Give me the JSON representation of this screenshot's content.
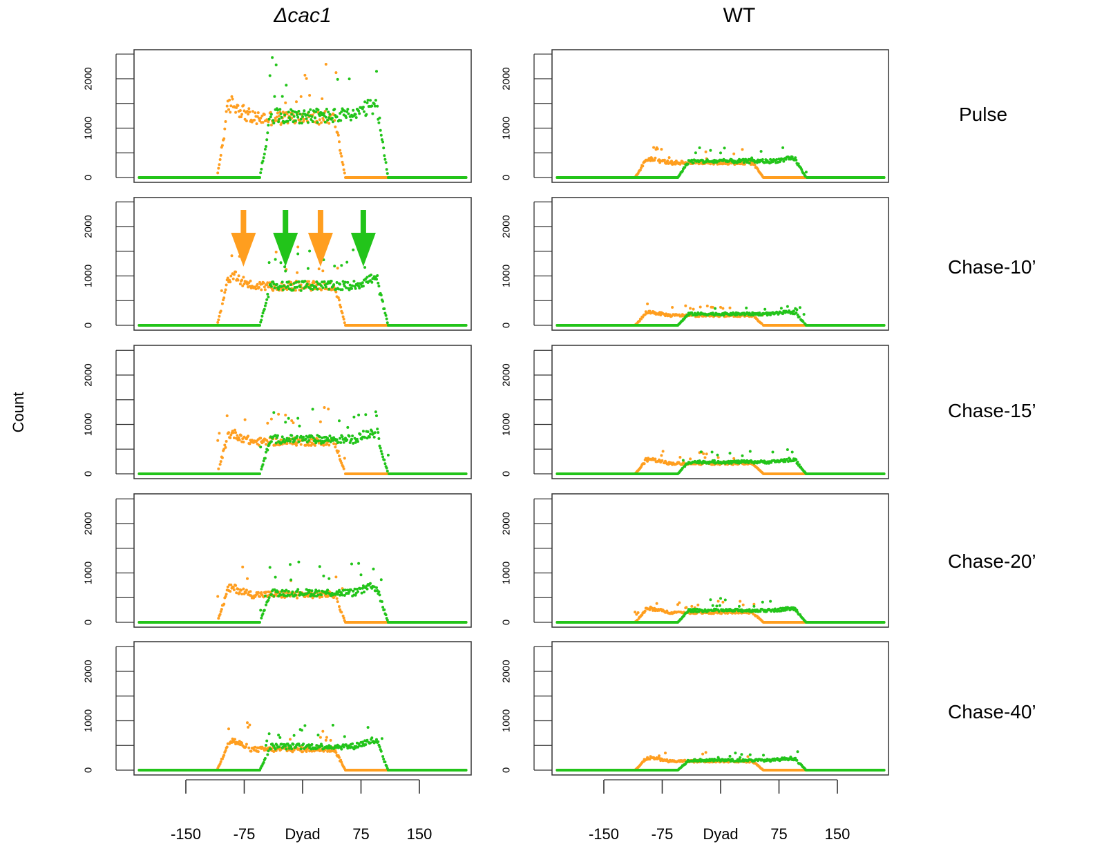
{
  "colors": {
    "orange": "#FF9E1F",
    "green": "#22C41A"
  },
  "chart_data": {
    "type": "scatter",
    "ylabel": "Count",
    "xlabel": "Dyad",
    "columns": [
      "Δcac1",
      "WT"
    ],
    "rows": [
      "Pulse",
      "Chase-10’",
      "Chase-15’",
      "Chase-20’",
      "Chase-40’"
    ],
    "xlim": [
      -225,
      225
    ],
    "ylim": [
      0,
      2500
    ],
    "yticks": [
      0,
      500,
      1000,
      1500,
      2000,
      2500
    ],
    "ytick_labels": [
      "0",
      "",
      "1000",
      "",
      "2000",
      ""
    ],
    "xticks": [
      -150,
      -75,
      0,
      75,
      150
    ],
    "xtick_labels": [
      "-150",
      "-75",
      "Dyad",
      "75",
      "150"
    ],
    "series_colors": [
      "orange",
      "green"
    ],
    "orange_span": [
      -110,
      55
    ],
    "green_span": [
      -55,
      110
    ],
    "panels": [
      {
        "column": "Δcac1",
        "row": "Pulse",
        "orange_peak": 1500,
        "orange_mid": 1200,
        "green_mid": 1250,
        "green_peak": 1450
      },
      {
        "column": "Δcac1",
        "row": "Chase-10’",
        "orange_peak": 1000,
        "orange_mid": 800,
        "green_mid": 800,
        "green_peak": 950
      },
      {
        "column": "Δcac1",
        "row": "Chase-15’",
        "orange_peak": 820,
        "orange_mid": 650,
        "green_mid": 700,
        "green_peak": 850
      },
      {
        "column": "Δcac1",
        "row": "Chase-20’",
        "orange_peak": 700,
        "orange_mid": 560,
        "green_mid": 600,
        "green_peak": 720
      },
      {
        "column": "Δcac1",
        "row": "Chase-40’",
        "orange_peak": 600,
        "orange_mid": 420,
        "green_mid": 480,
        "green_peak": 600
      },
      {
        "column": "WT",
        "row": "Pulse",
        "orange_peak": 380,
        "orange_mid": 300,
        "green_mid": 330,
        "green_peak": 380
      },
      {
        "column": "WT",
        "row": "Chase-10’",
        "orange_peak": 270,
        "orange_mid": 200,
        "green_mid": 230,
        "green_peak": 270
      },
      {
        "column": "WT",
        "row": "Chase-15’",
        "orange_peak": 300,
        "orange_mid": 210,
        "green_mid": 240,
        "green_peak": 290
      },
      {
        "column": "WT",
        "row": "Chase-20’",
        "orange_peak": 280,
        "orange_mid": 200,
        "green_mid": 240,
        "green_peak": 280
      },
      {
        "column": "WT",
        "row": "Chase-40’",
        "orange_peak": 250,
        "orange_mid": 180,
        "green_mid": 200,
        "green_peak": 240
      }
    ],
    "arrows": {
      "panel": "Δcac1 / Chase-10’",
      "x": [
        -76,
        -22,
        23,
        78
      ],
      "colors": [
        "orange",
        "green",
        "orange",
        "green"
      ]
    }
  }
}
